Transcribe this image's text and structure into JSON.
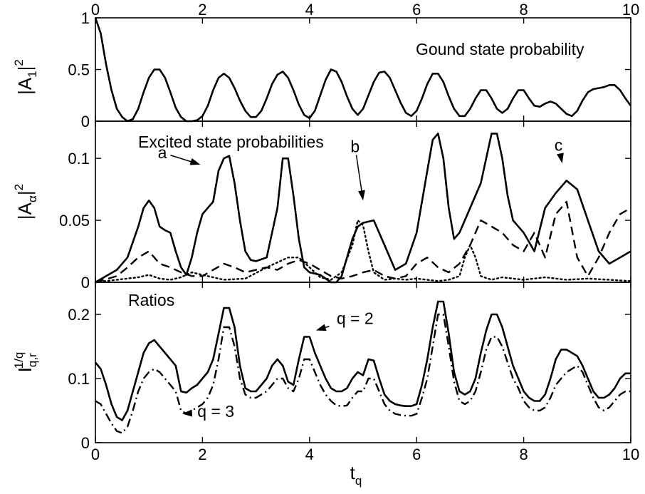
{
  "chart_data": [
    {
      "type": "line",
      "panel": "top",
      "title": "Gound state probability",
      "ylabel": {
        "main": "|A",
        "sub": "1",
        "tail": "|",
        "sup": "2"
      },
      "top_xlabel_ticks": [
        "0",
        "2",
        "4",
        "6",
        "8",
        "10"
      ],
      "xlim": [
        0,
        10
      ],
      "ylim": [
        0,
        1
      ],
      "yticks": [
        "0",
        "0.5",
        "1"
      ],
      "yticks_values": [
        0,
        0.5,
        1
      ],
      "series": [
        {
          "style": "solid",
          "x": [
            0,
            0.1,
            0.2,
            0.3,
            0.4,
            0.5,
            0.6,
            0.7,
            0.8,
            0.9,
            1.0,
            1.1,
            1.2,
            1.3,
            1.4,
            1.5,
            1.6,
            1.7,
            1.8,
            1.9,
            2.0,
            2.1,
            2.2,
            2.3,
            2.4,
            2.5,
            2.6,
            2.7,
            2.8,
            2.9,
            3.0,
            3.1,
            3.2,
            3.3,
            3.4,
            3.5,
            3.6,
            3.7,
            3.8,
            3.9,
            4.0,
            4.1,
            4.2,
            4.3,
            4.4,
            4.5,
            4.6,
            4.7,
            4.8,
            4.9,
            5.0,
            5.1,
            5.2,
            5.3,
            5.4,
            5.5,
            5.6,
            5.7,
            5.8,
            5.9,
            6.0,
            6.1,
            6.2,
            6.3,
            6.4,
            6.5,
            6.6,
            6.7,
            6.8,
            6.9,
            7.0,
            7.1,
            7.2,
            7.3,
            7.4,
            7.5,
            7.6,
            7.7,
            7.8,
            7.9,
            8.0,
            8.1,
            8.2,
            8.3,
            8.4,
            8.5,
            8.6,
            8.7,
            8.8,
            8.9,
            9.0,
            9.1,
            9.2,
            9.3,
            9.4,
            9.5,
            9.6,
            9.7,
            9.8,
            9.9,
            10.0
          ],
          "y": [
            1.0,
            0.85,
            0.55,
            0.3,
            0.12,
            0.04,
            0.0,
            0.02,
            0.12,
            0.28,
            0.42,
            0.5,
            0.5,
            0.42,
            0.28,
            0.13,
            0.04,
            0.0,
            0.0,
            0.01,
            0.05,
            0.15,
            0.3,
            0.42,
            0.46,
            0.42,
            0.32,
            0.2,
            0.1,
            0.04,
            0.04,
            0.1,
            0.22,
            0.36,
            0.45,
            0.48,
            0.42,
            0.3,
            0.16,
            0.06,
            0.03,
            0.1,
            0.25,
            0.4,
            0.5,
            0.48,
            0.38,
            0.24,
            0.12,
            0.06,
            0.12,
            0.25,
            0.38,
            0.47,
            0.48,
            0.42,
            0.3,
            0.18,
            0.08,
            0.05,
            0.1,
            0.22,
            0.36,
            0.46,
            0.46,
            0.38,
            0.24,
            0.12,
            0.05,
            0.05,
            0.12,
            0.22,
            0.3,
            0.3,
            0.22,
            0.12,
            0.08,
            0.12,
            0.22,
            0.3,
            0.3,
            0.22,
            0.15,
            0.14,
            0.17,
            0.19,
            0.17,
            0.12,
            0.07,
            0.05,
            0.1,
            0.2,
            0.28,
            0.31,
            0.32,
            0.33,
            0.35,
            0.35,
            0.3,
            0.22,
            0.15
          ]
        }
      ]
    },
    {
      "type": "line",
      "panel": "middle",
      "title": "Excited state probabilities",
      "ylabel": {
        "main": "|A",
        "sub": "α",
        "tail": "|",
        "sup": "2"
      },
      "xlim": [
        0,
        10
      ],
      "ylim": [
        0,
        0.13
      ],
      "yticks": [
        "0",
        "0.05",
        "0.1"
      ],
      "yticks_values": [
        0,
        0.05,
        0.1
      ],
      "annotations": [
        {
          "text": "a",
          "label_x": 1.25,
          "label_y": 0.1,
          "arrow_x": 1.96,
          "arrow_y": 0.095
        },
        {
          "text": "b",
          "label_x": 4.85,
          "label_y": 0.105,
          "arrow_x": 5.0,
          "arrow_y": 0.066
        },
        {
          "text": "c",
          "label_x": 8.65,
          "label_y": 0.106,
          "arrow_x": 8.72,
          "arrow_y": 0.096
        }
      ],
      "series": [
        {
          "label": "a",
          "style": "solid",
          "x": [
            0,
            0.2,
            0.4,
            0.6,
            0.8,
            0.9,
            1.0,
            1.1,
            1.2,
            1.3,
            1.4,
            1.5,
            1.6,
            1.7,
            1.8,
            1.9,
            2.0,
            2.1,
            2.2,
            2.3,
            2.4,
            2.5,
            2.6,
            2.7,
            2.8,
            2.9,
            3.0,
            3.2,
            3.4,
            3.5,
            3.6,
            3.7,
            3.8,
            3.9,
            4.0,
            4.1,
            4.2,
            4.4,
            4.5,
            4.6,
            4.7,
            4.8,
            4.9,
            5.0,
            5.2,
            5.4,
            5.6,
            5.8,
            6.0,
            6.2,
            6.3,
            6.4,
            6.5,
            6.6,
            6.7,
            6.8,
            7.0,
            7.2,
            7.4,
            7.5,
            7.6,
            7.7,
            7.8,
            7.9,
            8.0,
            8.2,
            8.4,
            8.6,
            8.8,
            9.0,
            9.2,
            9.4,
            9.6,
            9.8,
            10.0
          ],
          "y": [
            0.0,
            0.005,
            0.01,
            0.02,
            0.045,
            0.06,
            0.066,
            0.06,
            0.045,
            0.042,
            0.04,
            0.025,
            0.012,
            0.006,
            0.02,
            0.04,
            0.055,
            0.06,
            0.065,
            0.09,
            0.1,
            0.102,
            0.08,
            0.05,
            0.025,
            0.018,
            0.017,
            0.02,
            0.06,
            0.1,
            0.1,
            0.07,
            0.035,
            0.012,
            0.008,
            0.007,
            0.006,
            0.0,
            0.0,
            0.005,
            0.02,
            0.035,
            0.045,
            0.048,
            0.05,
            0.03,
            0.01,
            0.015,
            0.04,
            0.09,
            0.115,
            0.12,
            0.1,
            0.06,
            0.035,
            0.04,
            0.06,
            0.08,
            0.12,
            0.12,
            0.1,
            0.07,
            0.05,
            0.045,
            0.04,
            0.025,
            0.06,
            0.072,
            0.082,
            0.075,
            0.05,
            0.025,
            0.015,
            0.02,
            0.025
          ]
        },
        {
          "label": "c",
          "style": "dashed",
          "x": [
            0,
            0.4,
            0.6,
            0.8,
            1.0,
            1.2,
            1.4,
            1.6,
            1.8,
            2.0,
            2.2,
            2.4,
            2.6,
            2.8,
            3.0,
            3.2,
            3.4,
            3.6,
            3.8,
            4.0,
            4.2,
            4.4,
            4.6,
            4.8,
            5.0,
            5.2,
            5.4,
            5.6,
            5.8,
            6.0,
            6.2,
            6.4,
            6.6,
            6.8,
            7.0,
            7.2,
            7.4,
            7.6,
            7.8,
            8.0,
            8.2,
            8.4,
            8.6,
            8.8,
            9.0,
            9.2,
            9.4,
            9.6,
            9.8,
            10.0
          ],
          "y": [
            0.0,
            0.005,
            0.012,
            0.02,
            0.025,
            0.015,
            0.012,
            0.008,
            0.005,
            0.005,
            0.01,
            0.015,
            0.012,
            0.008,
            0.01,
            0.012,
            0.01,
            0.015,
            0.018,
            0.015,
            0.01,
            0.005,
            0.003,
            0.005,
            0.008,
            0.01,
            0.005,
            0.003,
            0.005,
            0.015,
            0.02,
            0.012,
            0.008,
            0.015,
            0.03,
            0.05,
            0.045,
            0.04,
            0.03,
            0.025,
            0.04,
            0.02,
            0.055,
            0.065,
            0.02,
            0.005,
            0.02,
            0.04,
            0.055,
            0.06
          ]
        },
        {
          "label": "b",
          "style": "dotted",
          "x": [
            0,
            0.4,
            0.8,
            1.0,
            1.2,
            1.4,
            1.6,
            1.8,
            2.0,
            2.4,
            2.8,
            3.2,
            3.6,
            3.8,
            4.0,
            4.2,
            4.4,
            4.6,
            4.8,
            4.9,
            5.0,
            5.1,
            5.2,
            5.4,
            5.6,
            5.8,
            6.0,
            6.2,
            6.4,
            6.6,
            6.8,
            6.9,
            7.0,
            7.1,
            7.2,
            7.4,
            7.6,
            7.8,
            8.0,
            8.4,
            8.8,
            9.2,
            9.6,
            10.0
          ],
          "y": [
            0.0,
            0.002,
            0.004,
            0.006,
            0.003,
            0.002,
            0.004,
            0.008,
            0.006,
            0.002,
            0.003,
            0.012,
            0.02,
            0.02,
            0.012,
            0.004,
            0.002,
            0.008,
            0.03,
            0.05,
            0.046,
            0.025,
            0.008,
            0.002,
            0.003,
            0.002,
            0.003,
            0.002,
            0.001,
            0.002,
            0.005,
            0.02,
            0.03,
            0.02,
            0.005,
            0.002,
            0.004,
            0.003,
            0.002,
            0.004,
            0.002,
            0.003,
            0.002,
            0.001
          ]
        }
      ]
    },
    {
      "type": "line",
      "panel": "bottom",
      "title": "Ratios",
      "ylabel": {
        "main": "I",
        "sub": "q,r",
        "sup": "1/q"
      },
      "xlabel": {
        "main": "t",
        "sub": "q"
      },
      "xlim": [
        0,
        10
      ],
      "ylim": [
        0,
        0.25
      ],
      "xticks": [
        "0",
        "2",
        "4",
        "6",
        "8",
        "10"
      ],
      "yticks": [
        "0",
        "0.1",
        "0.2"
      ],
      "yticks_values": [
        0,
        0.1,
        0.2
      ],
      "annotations": [
        {
          "text": "q = 2",
          "label_x": 4.85,
          "label_y": 0.185,
          "arrow_x": 4.12,
          "arrow_y": 0.175
        },
        {
          "text": "q = 3",
          "label_x": 2.25,
          "label_y": 0.04,
          "arrow_x": 1.62,
          "arrow_y": 0.045
        }
      ],
      "series": [
        {
          "name": "q = 2",
          "style": "solid",
          "x": [
            0,
            0.1,
            0.2,
            0.3,
            0.4,
            0.5,
            0.6,
            0.7,
            0.8,
            0.9,
            1.0,
            1.1,
            1.2,
            1.3,
            1.4,
            1.5,
            1.6,
            1.7,
            1.8,
            1.9,
            2.0,
            2.1,
            2.2,
            2.3,
            2.4,
            2.5,
            2.6,
            2.7,
            2.8,
            2.9,
            3.0,
            3.1,
            3.2,
            3.3,
            3.4,
            3.5,
            3.6,
            3.7,
            3.8,
            3.9,
            4.0,
            4.1,
            4.2,
            4.3,
            4.4,
            4.5,
            4.6,
            4.7,
            4.8,
            4.9,
            5.0,
            5.1,
            5.2,
            5.3,
            5.4,
            5.5,
            5.6,
            5.7,
            5.8,
            5.9,
            6.0,
            6.1,
            6.2,
            6.3,
            6.4,
            6.5,
            6.6,
            6.7,
            6.8,
            6.9,
            7.0,
            7.1,
            7.2,
            7.3,
            7.4,
            7.5,
            7.6,
            7.7,
            7.8,
            7.9,
            8.0,
            8.1,
            8.2,
            8.3,
            8.4,
            8.5,
            8.6,
            8.7,
            8.8,
            8.9,
            9.0,
            9.1,
            9.2,
            9.3,
            9.4,
            9.5,
            9.6,
            9.7,
            9.8,
            9.9,
            10.0
          ],
          "y": [
            0.125,
            0.115,
            0.09,
            0.06,
            0.04,
            0.035,
            0.05,
            0.08,
            0.11,
            0.14,
            0.155,
            0.16,
            0.15,
            0.14,
            0.13,
            0.12,
            0.08,
            0.078,
            0.085,
            0.09,
            0.1,
            0.11,
            0.13,
            0.17,
            0.21,
            0.21,
            0.18,
            0.12,
            0.085,
            0.08,
            0.08,
            0.09,
            0.1,
            0.12,
            0.13,
            0.12,
            0.095,
            0.09,
            0.13,
            0.165,
            0.165,
            0.14,
            0.12,
            0.1,
            0.085,
            0.08,
            0.08,
            0.085,
            0.1,
            0.11,
            0.105,
            0.13,
            0.128,
            0.1,
            0.075,
            0.065,
            0.06,
            0.058,
            0.057,
            0.057,
            0.06,
            0.09,
            0.13,
            0.18,
            0.22,
            0.22,
            0.17,
            0.11,
            0.08,
            0.075,
            0.08,
            0.1,
            0.14,
            0.175,
            0.2,
            0.2,
            0.18,
            0.15,
            0.12,
            0.1,
            0.08,
            0.07,
            0.065,
            0.065,
            0.075,
            0.1,
            0.13,
            0.145,
            0.145,
            0.14,
            0.135,
            0.12,
            0.1,
            0.08,
            0.07,
            0.07,
            0.075,
            0.085,
            0.1,
            0.108,
            0.108
          ]
        },
        {
          "name": "q = 3",
          "style": "dashdot",
          "x": [
            0,
            0.1,
            0.2,
            0.3,
            0.4,
            0.5,
            0.6,
            0.7,
            0.8,
            0.9,
            1.0,
            1.1,
            1.2,
            1.3,
            1.4,
            1.5,
            1.6,
            1.7,
            1.8,
            1.9,
            2.0,
            2.1,
            2.2,
            2.3,
            2.4,
            2.5,
            2.6,
            2.7,
            2.8,
            2.9,
            3.0,
            3.1,
            3.2,
            3.3,
            3.4,
            3.5,
            3.6,
            3.7,
            3.8,
            3.9,
            4.0,
            4.1,
            4.2,
            4.3,
            4.4,
            4.5,
            4.6,
            4.7,
            4.8,
            4.9,
            5.0,
            5.1,
            5.2,
            5.3,
            5.4,
            5.5,
            5.6,
            5.7,
            5.8,
            5.9,
            6.0,
            6.1,
            6.2,
            6.3,
            6.4,
            6.5,
            6.6,
            6.7,
            6.8,
            6.9,
            7.0,
            7.1,
            7.2,
            7.3,
            7.4,
            7.5,
            7.6,
            7.7,
            7.8,
            7.9,
            8.0,
            8.1,
            8.2,
            8.3,
            8.4,
            8.5,
            8.6,
            8.7,
            8.8,
            8.9,
            9.0,
            9.1,
            9.2,
            9.3,
            9.4,
            9.5,
            9.6,
            9.7,
            9.8,
            9.9,
            10.0
          ],
          "y": [
            0.065,
            0.06,
            0.045,
            0.03,
            0.018,
            0.015,
            0.025,
            0.05,
            0.08,
            0.1,
            0.11,
            0.115,
            0.11,
            0.1,
            0.09,
            0.08,
            0.05,
            0.045,
            0.05,
            0.055,
            0.06,
            0.07,
            0.09,
            0.13,
            0.18,
            0.18,
            0.15,
            0.1,
            0.075,
            0.07,
            0.07,
            0.075,
            0.08,
            0.09,
            0.1,
            0.1,
            0.085,
            0.08,
            0.1,
            0.13,
            0.13,
            0.11,
            0.09,
            0.075,
            0.065,
            0.058,
            0.057,
            0.058,
            0.07,
            0.08,
            0.08,
            0.1,
            0.1,
            0.08,
            0.06,
            0.05,
            0.045,
            0.043,
            0.042,
            0.042,
            0.045,
            0.07,
            0.1,
            0.15,
            0.2,
            0.2,
            0.15,
            0.095,
            0.065,
            0.06,
            0.065,
            0.08,
            0.11,
            0.145,
            0.165,
            0.165,
            0.15,
            0.125,
            0.1,
            0.085,
            0.065,
            0.055,
            0.05,
            0.05,
            0.055,
            0.07,
            0.09,
            0.1,
            0.11,
            0.115,
            0.12,
            0.11,
            0.09,
            0.07,
            0.055,
            0.05,
            0.055,
            0.065,
            0.075,
            0.08,
            0.08
          ]
        }
      ]
    }
  ]
}
